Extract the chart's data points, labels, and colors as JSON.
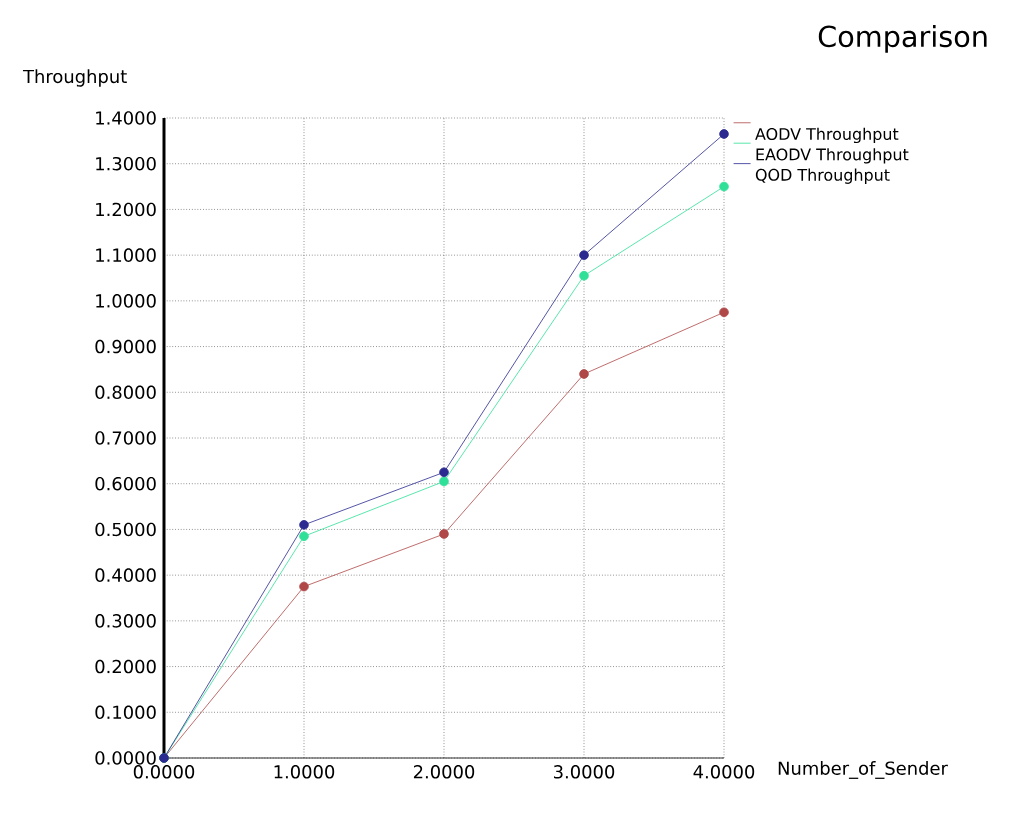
{
  "chart_data": {
    "type": "line",
    "title": "Comparison",
    "xlabel": "Number_of_Sender",
    "ylabel": "Throughput",
    "x": [
      0,
      1,
      2,
      3,
      4
    ],
    "series": [
      {
        "name": "AODV Throughput",
        "color": "#b04848",
        "values": [
          0,
          0.375,
          0.49,
          0.84,
          0.975
        ]
      },
      {
        "name": "EAODV Throughput",
        "color": "#30e098",
        "values": [
          0,
          0.485,
          0.605,
          1.055,
          1.25
        ]
      },
      {
        "name": "QOD Throughput",
        "color": "#2a2a90",
        "values": [
          0,
          0.51,
          0.625,
          1.1,
          1.365
        ]
      }
    ],
    "xlim": [
      0,
      4
    ],
    "ylim": [
      0,
      1.4
    ],
    "xticks": [
      {
        "value": 0,
        "label": "0.0000"
      },
      {
        "value": 1,
        "label": "1.0000"
      },
      {
        "value": 2,
        "label": "2.0000"
      },
      {
        "value": 3,
        "label": "3.0000"
      },
      {
        "value": 4,
        "label": "4.0000"
      }
    ],
    "yticks": [
      {
        "value": 0,
        "label": "0.0000"
      },
      {
        "value": 0.1,
        "label": "0.1000"
      },
      {
        "value": 0.2,
        "label": "0.2000"
      },
      {
        "value": 0.3,
        "label": "0.3000"
      },
      {
        "value": 0.4,
        "label": "0.4000"
      },
      {
        "value": 0.5,
        "label": "0.5000"
      },
      {
        "value": 0.6,
        "label": "0.6000"
      },
      {
        "value": 0.7,
        "label": "0.7000"
      },
      {
        "value": 0.8,
        "label": "0.8000"
      },
      {
        "value": 0.9,
        "label": "0.9000"
      },
      {
        "value": 1,
        "label": "1.0000"
      },
      {
        "value": 1.1,
        "label": "1.1000"
      },
      {
        "value": 1.2,
        "label": "1.2000"
      },
      {
        "value": 1.3,
        "label": "1.3000"
      },
      {
        "value": 1.4,
        "label": "1.4000"
      }
    ],
    "grid": true,
    "legend": "top right",
    "marker": "circle",
    "line_style": "solid"
  }
}
